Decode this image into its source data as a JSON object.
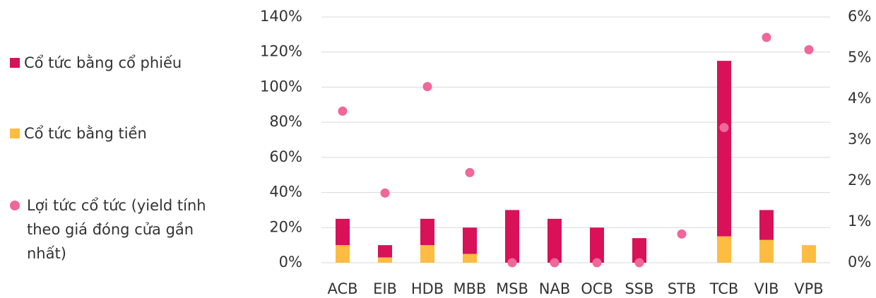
{
  "chart_data": {
    "type": "bar",
    "stacked": true,
    "categories": [
      "ACB",
      "EIB",
      "HDB",
      "MBB",
      "MSB",
      "NAB",
      "OCB",
      "SSB",
      "STB",
      "TCB",
      "VIB",
      "VPB"
    ],
    "series": [
      {
        "name": "Cổ tức bằng cổ phiếu",
        "color": "#d81159",
        "stack_order": 1,
        "values": [
          15,
          7,
          15,
          15,
          30,
          25,
          20,
          14,
          0,
          100,
          17,
          0
        ]
      },
      {
        "name": "Cổ tức bằng tiền",
        "color": "#ffbc42",
        "stack_order": 0,
        "values": [
          10,
          3,
          10,
          5,
          0,
          0,
          0,
          0,
          0,
          15,
          13,
          10
        ]
      },
      {
        "name": "Lợi tức cổ tức (yield tính theo giá đóng cửa gần nhất)",
        "color": "#f0679a",
        "type": "scatter",
        "axis": "y2",
        "values": [
          3.7,
          1.7,
          4.3,
          2.2,
          0,
          0,
          0,
          0,
          0.7,
          3.3,
          5.5,
          5.2
        ]
      }
    ],
    "ylim": [
      0,
      140
    ],
    "yticks": [
      {
        "value": 0,
        "label": "0%"
      },
      {
        "value": 20,
        "label": "20%"
      },
      {
        "value": 40,
        "label": "40%"
      },
      {
        "value": 60,
        "label": "60%"
      },
      {
        "value": 80,
        "label": "80%"
      },
      {
        "value": 100,
        "label": "100%"
      },
      {
        "value": 120,
        "label": "120%"
      },
      {
        "value": 140,
        "label": "140%"
      }
    ],
    "y2lim": [
      0,
      6
    ],
    "y2ticks": [
      {
        "value": 0,
        "label": "0%"
      },
      {
        "value": 1,
        "label": "1%"
      },
      {
        "value": 2,
        "label": "2%"
      },
      {
        "value": 3,
        "label": "3%"
      },
      {
        "value": 4,
        "label": "4%"
      },
      {
        "value": 5,
        "label": "5%"
      },
      {
        "value": 6,
        "label": "6%"
      }
    ],
    "grid": true,
    "legend": "left"
  }
}
